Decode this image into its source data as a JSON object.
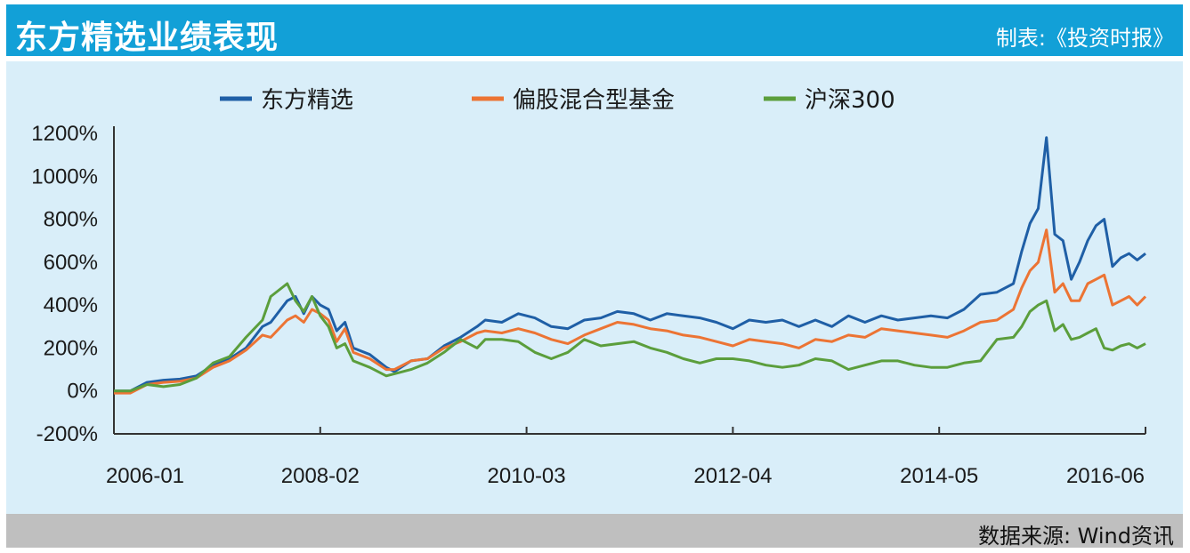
{
  "header": {
    "title": "东方精选业绩表现",
    "credit": "制表:《投资时报》"
  },
  "footer": {
    "source": "数据来源: Wind资讯"
  },
  "colors": {
    "header_bg": "#12a0d7",
    "plot_bg": "#d9eef9",
    "footer_bg": "#bfbfbf",
    "series_1": "#1f5fa6",
    "series_2": "#ec7434",
    "series_3": "#5b9e3c"
  },
  "chart_data": {
    "type": "line",
    "title": "东方精选业绩表现",
    "xlabel": "",
    "ylabel": "",
    "x_tick_labels": [
      "2006-01",
      "2008-02",
      "2010-03",
      "2012-04",
      "2014-05",
      "2016-06"
    ],
    "y_tick_labels": [
      "-200%",
      "0%",
      "200%",
      "400%",
      "600%",
      "800%",
      "1000%",
      "1200%"
    ],
    "y_ticks": [
      -200,
      0,
      200,
      400,
      600,
      800,
      1000,
      1200
    ],
    "ylim": [
      -200,
      1200
    ],
    "xlim": [
      "2006-01",
      "2016-06"
    ],
    "legend_position": "top",
    "grid": false,
    "series": [
      {
        "name": "东方精选",
        "color": "#1f5fa6",
        "points": [
          [
            "2006-01",
            0
          ],
          [
            "2006-03",
            0
          ],
          [
            "2006-05",
            40
          ],
          [
            "2006-07",
            50
          ],
          [
            "2006-09",
            55
          ],
          [
            "2006-11",
            70
          ],
          [
            "2007-01",
            120
          ],
          [
            "2007-03",
            150
          ],
          [
            "2007-05",
            200
          ],
          [
            "2007-07",
            300
          ],
          [
            "2007-08",
            320
          ],
          [
            "2007-10",
            420
          ],
          [
            "2007-11",
            440
          ],
          [
            "2007-12",
            360
          ],
          [
            "2008-01",
            440
          ],
          [
            "2008-02",
            400
          ],
          [
            "2008-03",
            380
          ],
          [
            "2008-04",
            280
          ],
          [
            "2008-05",
            320
          ],
          [
            "2008-06",
            200
          ],
          [
            "2008-08",
            170
          ],
          [
            "2008-10",
            110
          ],
          [
            "2008-11",
            90
          ],
          [
            "2009-01",
            140
          ],
          [
            "2009-03",
            150
          ],
          [
            "2009-05",
            210
          ],
          [
            "2009-07",
            250
          ],
          [
            "2009-09",
            300
          ],
          [
            "2009-10",
            330
          ],
          [
            "2009-12",
            320
          ],
          [
            "2010-02",
            360
          ],
          [
            "2010-04",
            340
          ],
          [
            "2010-06",
            300
          ],
          [
            "2010-08",
            290
          ],
          [
            "2010-10",
            330
          ],
          [
            "2010-12",
            340
          ],
          [
            "2011-02",
            370
          ],
          [
            "2011-04",
            360
          ],
          [
            "2011-06",
            330
          ],
          [
            "2011-08",
            360
          ],
          [
            "2011-10",
            350
          ],
          [
            "2011-12",
            340
          ],
          [
            "2012-02",
            320
          ],
          [
            "2012-04",
            290
          ],
          [
            "2012-06",
            330
          ],
          [
            "2012-08",
            320
          ],
          [
            "2012-10",
            330
          ],
          [
            "2012-12",
            300
          ],
          [
            "2013-02",
            330
          ],
          [
            "2013-04",
            300
          ],
          [
            "2013-06",
            350
          ],
          [
            "2013-08",
            320
          ],
          [
            "2013-10",
            350
          ],
          [
            "2013-12",
            330
          ],
          [
            "2014-02",
            340
          ],
          [
            "2014-04",
            350
          ],
          [
            "2014-06",
            340
          ],
          [
            "2014-08",
            380
          ],
          [
            "2014-10",
            450
          ],
          [
            "2014-12",
            460
          ],
          [
            "2015-02",
            500
          ],
          [
            "2015-03",
            650
          ],
          [
            "2015-04",
            780
          ],
          [
            "2015-05",
            850
          ],
          [
            "2015-06",
            1180
          ],
          [
            "2015-07",
            730
          ],
          [
            "2015-08",
            700
          ],
          [
            "2015-09",
            520
          ],
          [
            "2015-10",
            600
          ],
          [
            "2015-11",
            700
          ],
          [
            "2015-12",
            770
          ],
          [
            "2016-01",
            800
          ],
          [
            "2016-02",
            580
          ],
          [
            "2016-03",
            620
          ],
          [
            "2016-04",
            640
          ],
          [
            "2016-05",
            610
          ],
          [
            "2016-06",
            640
          ]
        ]
      },
      {
        "name": "偏股混合型基金",
        "color": "#ec7434",
        "points": [
          [
            "2006-01",
            -10
          ],
          [
            "2006-03",
            -10
          ],
          [
            "2006-05",
            30
          ],
          [
            "2006-07",
            40
          ],
          [
            "2006-09",
            45
          ],
          [
            "2006-11",
            60
          ],
          [
            "2007-01",
            110
          ],
          [
            "2007-03",
            140
          ],
          [
            "2007-05",
            190
          ],
          [
            "2007-07",
            260
          ],
          [
            "2007-08",
            250
          ],
          [
            "2007-10",
            330
          ],
          [
            "2007-11",
            350
          ],
          [
            "2007-12",
            320
          ],
          [
            "2008-01",
            380
          ],
          [
            "2008-02",
            360
          ],
          [
            "2008-03",
            330
          ],
          [
            "2008-04",
            230
          ],
          [
            "2008-05",
            290
          ],
          [
            "2008-06",
            180
          ],
          [
            "2008-08",
            150
          ],
          [
            "2008-10",
            100
          ],
          [
            "2008-11",
            100
          ],
          [
            "2009-01",
            140
          ],
          [
            "2009-03",
            150
          ],
          [
            "2009-05",
            200
          ],
          [
            "2009-07",
            230
          ],
          [
            "2009-09",
            270
          ],
          [
            "2009-10",
            280
          ],
          [
            "2009-12",
            270
          ],
          [
            "2010-02",
            290
          ],
          [
            "2010-04",
            270
          ],
          [
            "2010-06",
            240
          ],
          [
            "2010-08",
            220
          ],
          [
            "2010-10",
            260
          ],
          [
            "2010-12",
            290
          ],
          [
            "2011-02",
            320
          ],
          [
            "2011-04",
            310
          ],
          [
            "2011-06",
            290
          ],
          [
            "2011-08",
            280
          ],
          [
            "2011-10",
            260
          ],
          [
            "2011-12",
            250
          ],
          [
            "2012-02",
            230
          ],
          [
            "2012-04",
            210
          ],
          [
            "2012-06",
            240
          ],
          [
            "2012-08",
            230
          ],
          [
            "2012-10",
            220
          ],
          [
            "2012-12",
            200
          ],
          [
            "2013-02",
            240
          ],
          [
            "2013-04",
            230
          ],
          [
            "2013-06",
            260
          ],
          [
            "2013-08",
            250
          ],
          [
            "2013-10",
            290
          ],
          [
            "2013-12",
            280
          ],
          [
            "2014-02",
            270
          ],
          [
            "2014-04",
            260
          ],
          [
            "2014-06",
            250
          ],
          [
            "2014-08",
            280
          ],
          [
            "2014-10",
            320
          ],
          [
            "2014-12",
            330
          ],
          [
            "2015-02",
            380
          ],
          [
            "2015-03",
            480
          ],
          [
            "2015-04",
            560
          ],
          [
            "2015-05",
            600
          ],
          [
            "2015-06",
            750
          ],
          [
            "2015-07",
            460
          ],
          [
            "2015-08",
            500
          ],
          [
            "2015-09",
            420
          ],
          [
            "2015-10",
            420
          ],
          [
            "2015-11",
            500
          ],
          [
            "2015-12",
            520
          ],
          [
            "2016-01",
            540
          ],
          [
            "2016-02",
            400
          ],
          [
            "2016-03",
            420
          ],
          [
            "2016-04",
            440
          ],
          [
            "2016-05",
            400
          ],
          [
            "2016-06",
            440
          ]
        ]
      },
      {
        "name": "沪深300",
        "color": "#5b9e3c",
        "points": [
          [
            "2006-01",
            0
          ],
          [
            "2006-03",
            0
          ],
          [
            "2006-05",
            30
          ],
          [
            "2006-07",
            20
          ],
          [
            "2006-09",
            30
          ],
          [
            "2006-11",
            60
          ],
          [
            "2007-01",
            130
          ],
          [
            "2007-03",
            160
          ],
          [
            "2007-05",
            250
          ],
          [
            "2007-07",
            330
          ],
          [
            "2007-08",
            440
          ],
          [
            "2007-10",
            500
          ],
          [
            "2007-11",
            420
          ],
          [
            "2007-12",
            370
          ],
          [
            "2008-01",
            440
          ],
          [
            "2008-02",
            350
          ],
          [
            "2008-03",
            300
          ],
          [
            "2008-04",
            200
          ],
          [
            "2008-05",
            220
          ],
          [
            "2008-06",
            140
          ],
          [
            "2008-08",
            110
          ],
          [
            "2008-10",
            70
          ],
          [
            "2008-11",
            80
          ],
          [
            "2009-01",
            100
          ],
          [
            "2009-03",
            130
          ],
          [
            "2009-05",
            180
          ],
          [
            "2009-07",
            240
          ],
          [
            "2009-09",
            200
          ],
          [
            "2009-10",
            240
          ],
          [
            "2009-12",
            240
          ],
          [
            "2010-02",
            230
          ],
          [
            "2010-04",
            180
          ],
          [
            "2010-06",
            150
          ],
          [
            "2010-08",
            180
          ],
          [
            "2010-10",
            240
          ],
          [
            "2010-12",
            210
          ],
          [
            "2011-02",
            220
          ],
          [
            "2011-04",
            230
          ],
          [
            "2011-06",
            200
          ],
          [
            "2011-08",
            180
          ],
          [
            "2011-10",
            150
          ],
          [
            "2011-12",
            130
          ],
          [
            "2012-02",
            150
          ],
          [
            "2012-04",
            150
          ],
          [
            "2012-06",
            140
          ],
          [
            "2012-08",
            120
          ],
          [
            "2012-10",
            110
          ],
          [
            "2012-12",
            120
          ],
          [
            "2013-02",
            150
          ],
          [
            "2013-04",
            140
          ],
          [
            "2013-06",
            100
          ],
          [
            "2013-08",
            120
          ],
          [
            "2013-10",
            140
          ],
          [
            "2013-12",
            140
          ],
          [
            "2014-02",
            120
          ],
          [
            "2014-04",
            110
          ],
          [
            "2014-06",
            110
          ],
          [
            "2014-08",
            130
          ],
          [
            "2014-10",
            140
          ],
          [
            "2014-12",
            240
          ],
          [
            "2015-02",
            250
          ],
          [
            "2015-03",
            300
          ],
          [
            "2015-04",
            370
          ],
          [
            "2015-05",
            400
          ],
          [
            "2015-06",
            420
          ],
          [
            "2015-07",
            280
          ],
          [
            "2015-08",
            310
          ],
          [
            "2015-09",
            240
          ],
          [
            "2015-10",
            250
          ],
          [
            "2015-11",
            270
          ],
          [
            "2015-12",
            290
          ],
          [
            "2016-01",
            200
          ],
          [
            "2016-02",
            190
          ],
          [
            "2016-03",
            210
          ],
          [
            "2016-04",
            220
          ],
          [
            "2016-05",
            200
          ],
          [
            "2016-06",
            220
          ]
        ]
      }
    ]
  }
}
